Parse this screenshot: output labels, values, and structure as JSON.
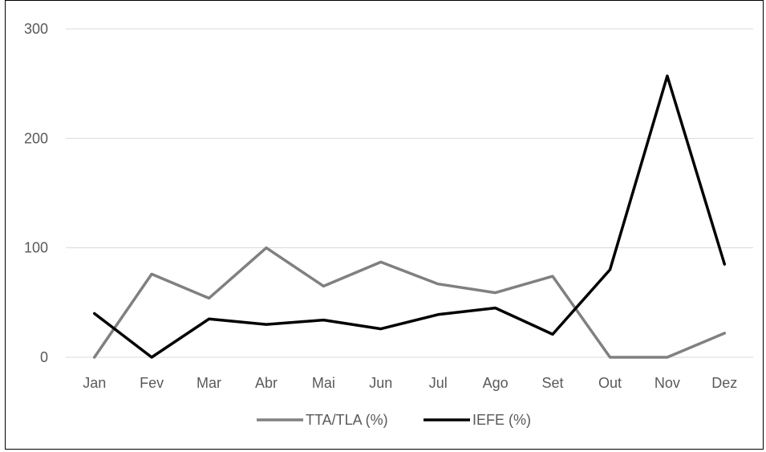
{
  "chart_data": {
    "type": "line",
    "categories": [
      "Jan",
      "Fev",
      "Mar",
      "Abr",
      "Mai",
      "Jun",
      "Jul",
      "Ago",
      "Set",
      "Out",
      "Nov",
      "Dez"
    ],
    "series": [
      {
        "name": "TTA/TLA (%)",
        "color": "#808080",
        "values": [
          0,
          76,
          54,
          100,
          65,
          87,
          67,
          59,
          74,
          0,
          0,
          22
        ]
      },
      {
        "name": "IEFE (%)",
        "color": "#000000",
        "values": [
          40,
          0,
          35,
          30,
          34,
          26,
          39,
          45,
          21,
          80,
          257,
          85
        ]
      }
    ],
    "ylim": [
      0,
      300
    ],
    "yticks": [
      0,
      100,
      200,
      300
    ],
    "grid": true,
    "legend_position": "bottom"
  }
}
